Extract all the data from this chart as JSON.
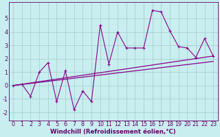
{
  "x": [
    0,
    1,
    2,
    3,
    4,
    5,
    6,
    7,
    8,
    9,
    10,
    11,
    12,
    13,
    14,
    15,
    16,
    17,
    18,
    19,
    20,
    21,
    22,
    23
  ],
  "y_main": [
    0.0,
    0.1,
    -0.8,
    1.0,
    1.7,
    -1.2,
    1.1,
    -1.8,
    -0.4,
    -1.2,
    4.5,
    1.6,
    4.0,
    2.8,
    2.8,
    2.8,
    5.6,
    5.5,
    4.1,
    2.9,
    2.8,
    2.1,
    3.5,
    2.2
  ],
  "line1_start": 0.0,
  "line1_end": 2.2,
  "line2_start": 0.0,
  "line2_end": 1.8,
  "line_color": "#880088",
  "bg_color": "#c8eef0",
  "grid_color": "#a0ccc8",
  "xlabel": "Windchill (Refroidissement éolien,°C)",
  "xlim": [
    -0.5,
    23.5
  ],
  "ylim": [
    -2.6,
    6.2
  ],
  "yticks": [
    -2,
    -1,
    0,
    1,
    2,
    3,
    4,
    5
  ],
  "xticks": [
    0,
    1,
    2,
    3,
    4,
    5,
    6,
    7,
    8,
    9,
    10,
    11,
    12,
    13,
    14,
    15,
    16,
    17,
    18,
    19,
    20,
    21,
    22,
    23
  ],
  "title_color": "#660066",
  "font_size": 5.8,
  "xlabel_fontsize": 6.2
}
